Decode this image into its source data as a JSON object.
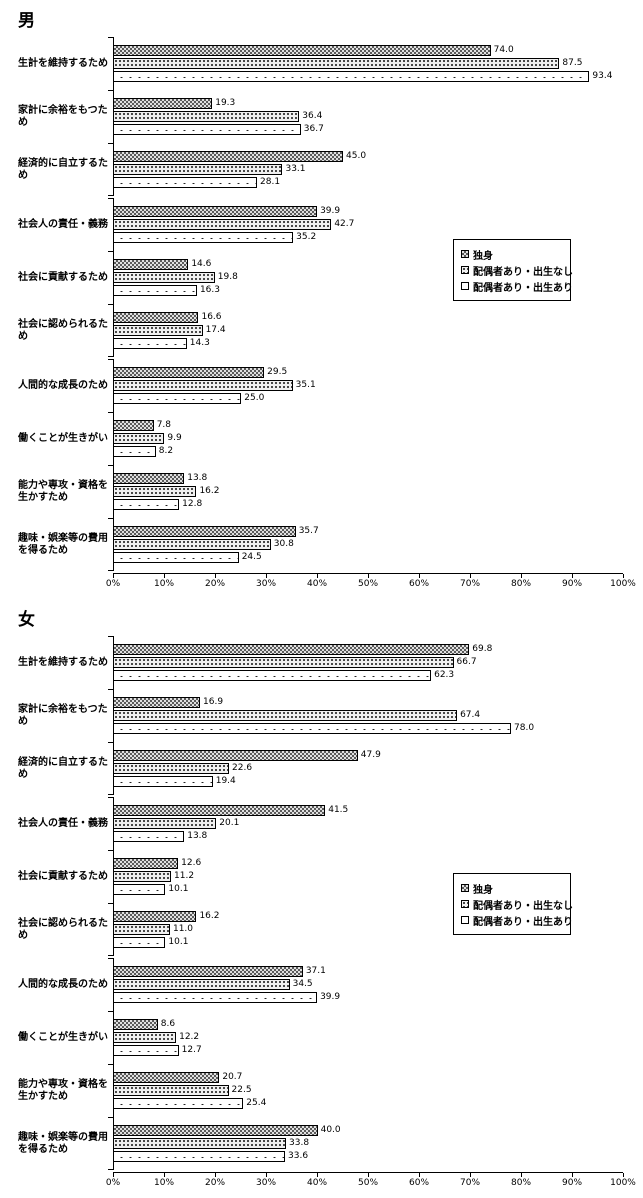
{
  "colors": {
    "background": "#ffffff",
    "axis": "#000000",
    "text": "#000000",
    "pattern_dark": "#5a5a5a",
    "pattern_light": "#f0f0f0",
    "bar_border": "#000000"
  },
  "chart_data": [
    {
      "type": "bar",
      "orientation": "horizontal",
      "title": "男",
      "value_unit": "%",
      "xlim": [
        0,
        100
      ],
      "grid": false,
      "x_tick_labels": [
        "0%",
        "10%",
        "20%",
        "30%",
        "40%",
        "50%",
        "60%",
        "70%",
        "80%",
        "90%",
        "100%"
      ],
      "series": [
        "独身",
        "配偶者あり・出生なし",
        "配偶者あり・出生あり"
      ],
      "series_patterns": [
        "dark-checker",
        "dense-dots",
        "sparse-dots"
      ],
      "legend": {
        "position": "middle-right",
        "items": [
          "独身",
          "配偶者あり・出生なし",
          "配偶者あり・出生あり"
        ]
      },
      "groups": [
        {
          "categories": [
            {
              "label": "生計を維持するため",
              "values": [
                "74.0",
                "87.5",
                "93.4"
              ]
            },
            {
              "label": "家計に余裕をもつため",
              "values": [
                "19.3",
                "36.4",
                "36.7"
              ]
            },
            {
              "label": "経済的に自立するため",
              "values": [
                "45.0",
                "33.1",
                "28.1"
              ]
            }
          ]
        },
        {
          "categories": [
            {
              "label": "社会人の責任・義務",
              "values": [
                "39.9",
                "42.7",
                "35.2"
              ]
            },
            {
              "label": "社会に貢献するため",
              "values": [
                "14.6",
                "19.8",
                "16.3"
              ]
            },
            {
              "label": "社会に認められるため",
              "values": [
                "16.6",
                "17.4",
                "14.3"
              ]
            }
          ]
        },
        {
          "categories": [
            {
              "label": "人間的な成長のため",
              "values": [
                "29.5",
                "35.1",
                "25.0"
              ]
            },
            {
              "label": "働くことが生きがい",
              "values": [
                "7.8",
                "9.9",
                "8.2"
              ]
            },
            {
              "label": "能力や専攻・資格を\n生かすため",
              "values": [
                "13.8",
                "16.2",
                "12.8"
              ]
            },
            {
              "label": "趣味・娯楽等の費用\nを得るため",
              "values": [
                "35.7",
                "30.8",
                "24.5"
              ]
            }
          ]
        }
      ]
    },
    {
      "type": "bar",
      "orientation": "horizontal",
      "title": "女",
      "value_unit": "%",
      "xlim": [
        0,
        100
      ],
      "grid": false,
      "x_tick_labels": [
        "0%",
        "10%",
        "20%",
        "30%",
        "40%",
        "50%",
        "60%",
        "70%",
        "80%",
        "90%",
        "100%"
      ],
      "series": [
        "独身",
        "配偶者あり・出生なし",
        "配偶者あり・出生あり"
      ],
      "series_patterns": [
        "dark-checker",
        "dense-dots",
        "sparse-dots"
      ],
      "legend": {
        "position": "middle-right",
        "items": [
          "独身",
          "配偶者あり・出生なし",
          "配偶者あり・出生あり"
        ]
      },
      "groups": [
        {
          "categories": [
            {
              "label": "生計を維持するため",
              "values": [
                "69.8",
                "66.7",
                "62.3"
              ]
            },
            {
              "label": "家計に余裕をもつため",
              "values": [
                "16.9",
                "67.4",
                "78.0"
              ]
            },
            {
              "label": "経済的に自立するため",
              "values": [
                "47.9",
                "22.6",
                "19.4"
              ]
            }
          ]
        },
        {
          "categories": [
            {
              "label": "社会人の責任・義務",
              "values": [
                "41.5",
                "20.1",
                "13.8"
              ]
            },
            {
              "label": "社会に貢献するため",
              "values": [
                "12.6",
                "11.2",
                "10.1"
              ]
            },
            {
              "label": "社会に認められるため",
              "values": [
                "16.2",
                "11.0",
                "10.1"
              ]
            }
          ]
        },
        {
          "categories": [
            {
              "label": "人間的な成長のため",
              "values": [
                "37.1",
                "34.5",
                "39.9"
              ]
            },
            {
              "label": "働くことが生きがい",
              "values": [
                "8.6",
                "12.2",
                "12.7"
              ]
            },
            {
              "label": "能力や専攻・資格を\n生かすため",
              "values": [
                "20.7",
                "22.5",
                "25.4"
              ]
            },
            {
              "label": "趣味・娯楽等の費用\nを得るため",
              "values": [
                "40.0",
                "33.8",
                "33.6"
              ]
            }
          ]
        }
      ]
    }
  ]
}
